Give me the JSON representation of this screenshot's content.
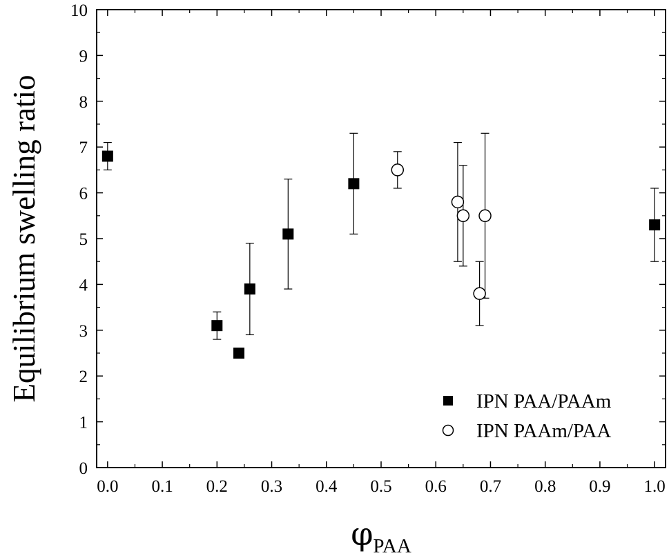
{
  "chart_data": {
    "type": "scatter",
    "title": "",
    "xlabel": "φ",
    "xlabel_subscript": "PAA",
    "ylabel": "Equilibrium swelling ratio",
    "xlim": [
      -0.02,
      1.02
    ],
    "ylim": [
      0,
      10
    ],
    "x_ticks": [
      "0.0",
      "0.1",
      "0.2",
      "0.3",
      "0.4",
      "0.5",
      "0.6",
      "0.7",
      "0.8",
      "0.9",
      "1.0"
    ],
    "y_ticks": [
      "0",
      "1",
      "2",
      "3",
      "4",
      "5",
      "6",
      "7",
      "8",
      "9",
      "10"
    ],
    "grid": false,
    "legend_position": "bottom-right",
    "series": [
      {
        "name": "IPN PAA/PAAm",
        "marker": "filled-square",
        "color": "#000000",
        "points": [
          {
            "x": 0.0,
            "y": 6.8,
            "err_low": 6.5,
            "err_high": 7.1
          },
          {
            "x": 0.2,
            "y": 3.1,
            "err_low": 2.8,
            "err_high": 3.4
          },
          {
            "x": 0.24,
            "y": 2.5
          },
          {
            "x": 0.26,
            "y": 3.9,
            "err_low": 2.9,
            "err_high": 4.9
          },
          {
            "x": 0.33,
            "y": 5.1,
            "err_low": 3.9,
            "err_high": 6.3
          },
          {
            "x": 0.45,
            "y": 6.2,
            "err_low": 5.1,
            "err_high": 7.3
          },
          {
            "x": 1.0,
            "y": 5.3,
            "err_low": 4.5,
            "err_high": 6.1
          }
        ]
      },
      {
        "name": "IPN PAAm/PAA",
        "marker": "open-circle",
        "color": "#000000",
        "points": [
          {
            "x": 0.53,
            "y": 6.5,
            "err_low": 6.1,
            "err_high": 6.9
          },
          {
            "x": 0.64,
            "y": 5.8,
            "err_low": 4.5,
            "err_high": 7.1
          },
          {
            "x": 0.65,
            "y": 5.5,
            "err_low": 4.4,
            "err_high": 6.6
          },
          {
            "x": 0.68,
            "y": 3.8,
            "err_low": 3.1,
            "err_high": 4.5
          },
          {
            "x": 0.69,
            "y": 5.5,
            "err_low": 3.7,
            "err_high": 7.3
          }
        ]
      }
    ]
  }
}
